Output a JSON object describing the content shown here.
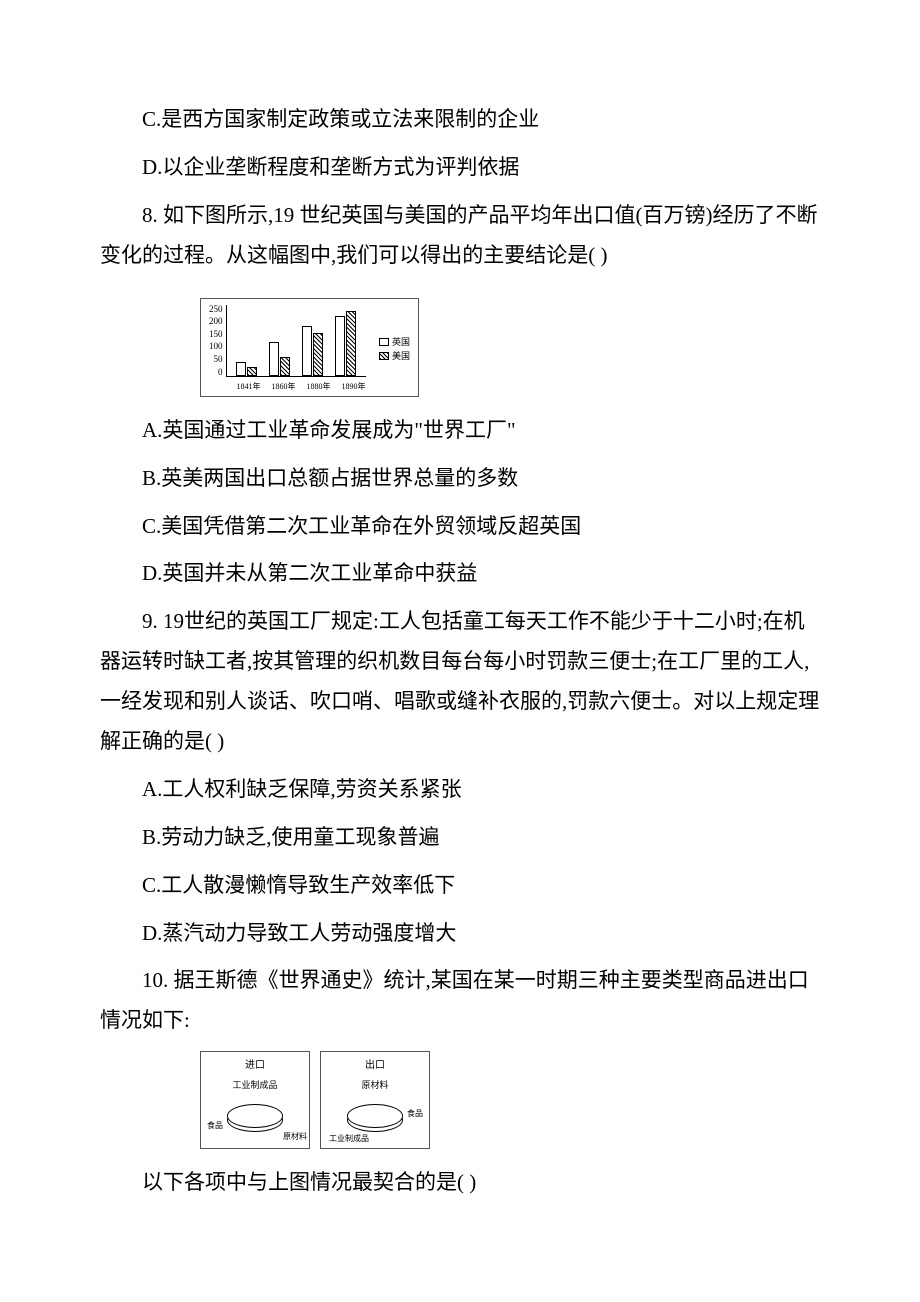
{
  "q7": {
    "c": "C.是西方国家制定政策或立法来限制的企业",
    "d": "D.以企业垄断程度和垄断方式为评判依据"
  },
  "q8": {
    "stem": "8. 如下图所示,19 世纪英国与美国的产品平均年出口值(百万镑)经历了不断变化的过程。从这幅图中,我们可以得出的主要结论是( )",
    "chart": {
      "type": "bar",
      "ylim_max": 250,
      "yticks": [
        "250",
        "200",
        "150",
        "100",
        "50",
        "0"
      ],
      "categories": [
        "1841年",
        "1860年",
        "1880年",
        "1890年"
      ],
      "series": [
        {
          "name": "英国",
          "fill": "uk",
          "values": [
            48,
            118,
            175,
            210
          ]
        },
        {
          "name": "美国",
          "fill": "us",
          "values": [
            30,
            65,
            150,
            225
          ]
        }
      ],
      "legend": [
        "英国",
        "美国"
      ]
    },
    "a": "A.英国通过工业革命发展成为\"世界工厂\"",
    "b": "B.英美两国出口总额占据世界总量的多数",
    "c": "C.美国凭借第二次工业革命在外贸领域反超英国",
    "d": "D.英国并未从第二次工业革命中获益"
  },
  "q9": {
    "stem": "9. 19世纪的英国工厂规定:工人包括童工每天工作不能少于十二小时;在机器运转时缺工者,按其管理的织机数目每台每小时罚款三便士;在工厂里的工人,一经发现和别人谈话、吹口哨、唱歌或缝补衣服的,罚款六便士。对以上规定理解正确的是( )",
    "a": "A.工人权利缺乏保障,劳资关系紧张",
    "b": "B.劳动力缺乏,使用童工现象普遍",
    "c": "C.工人散漫懒惰导致生产效率低下",
    "d": "D.蒸汽动力导致工人劳动强度增大"
  },
  "q10": {
    "stem": "10. 据王斯德《世界通史》统计,某国在某一时期三种主要类型商品进出口情况如下:",
    "diagram": {
      "left": {
        "title": "进口",
        "labels": [
          "工业制成品",
          "食品",
          "原材料"
        ]
      },
      "right": {
        "title": "出口",
        "labels": [
          "原材料",
          "食品",
          "工业制成品"
        ]
      }
    },
    "follow": "以下各项中与上图情况最契合的是( )"
  },
  "watermark_text": ""
}
